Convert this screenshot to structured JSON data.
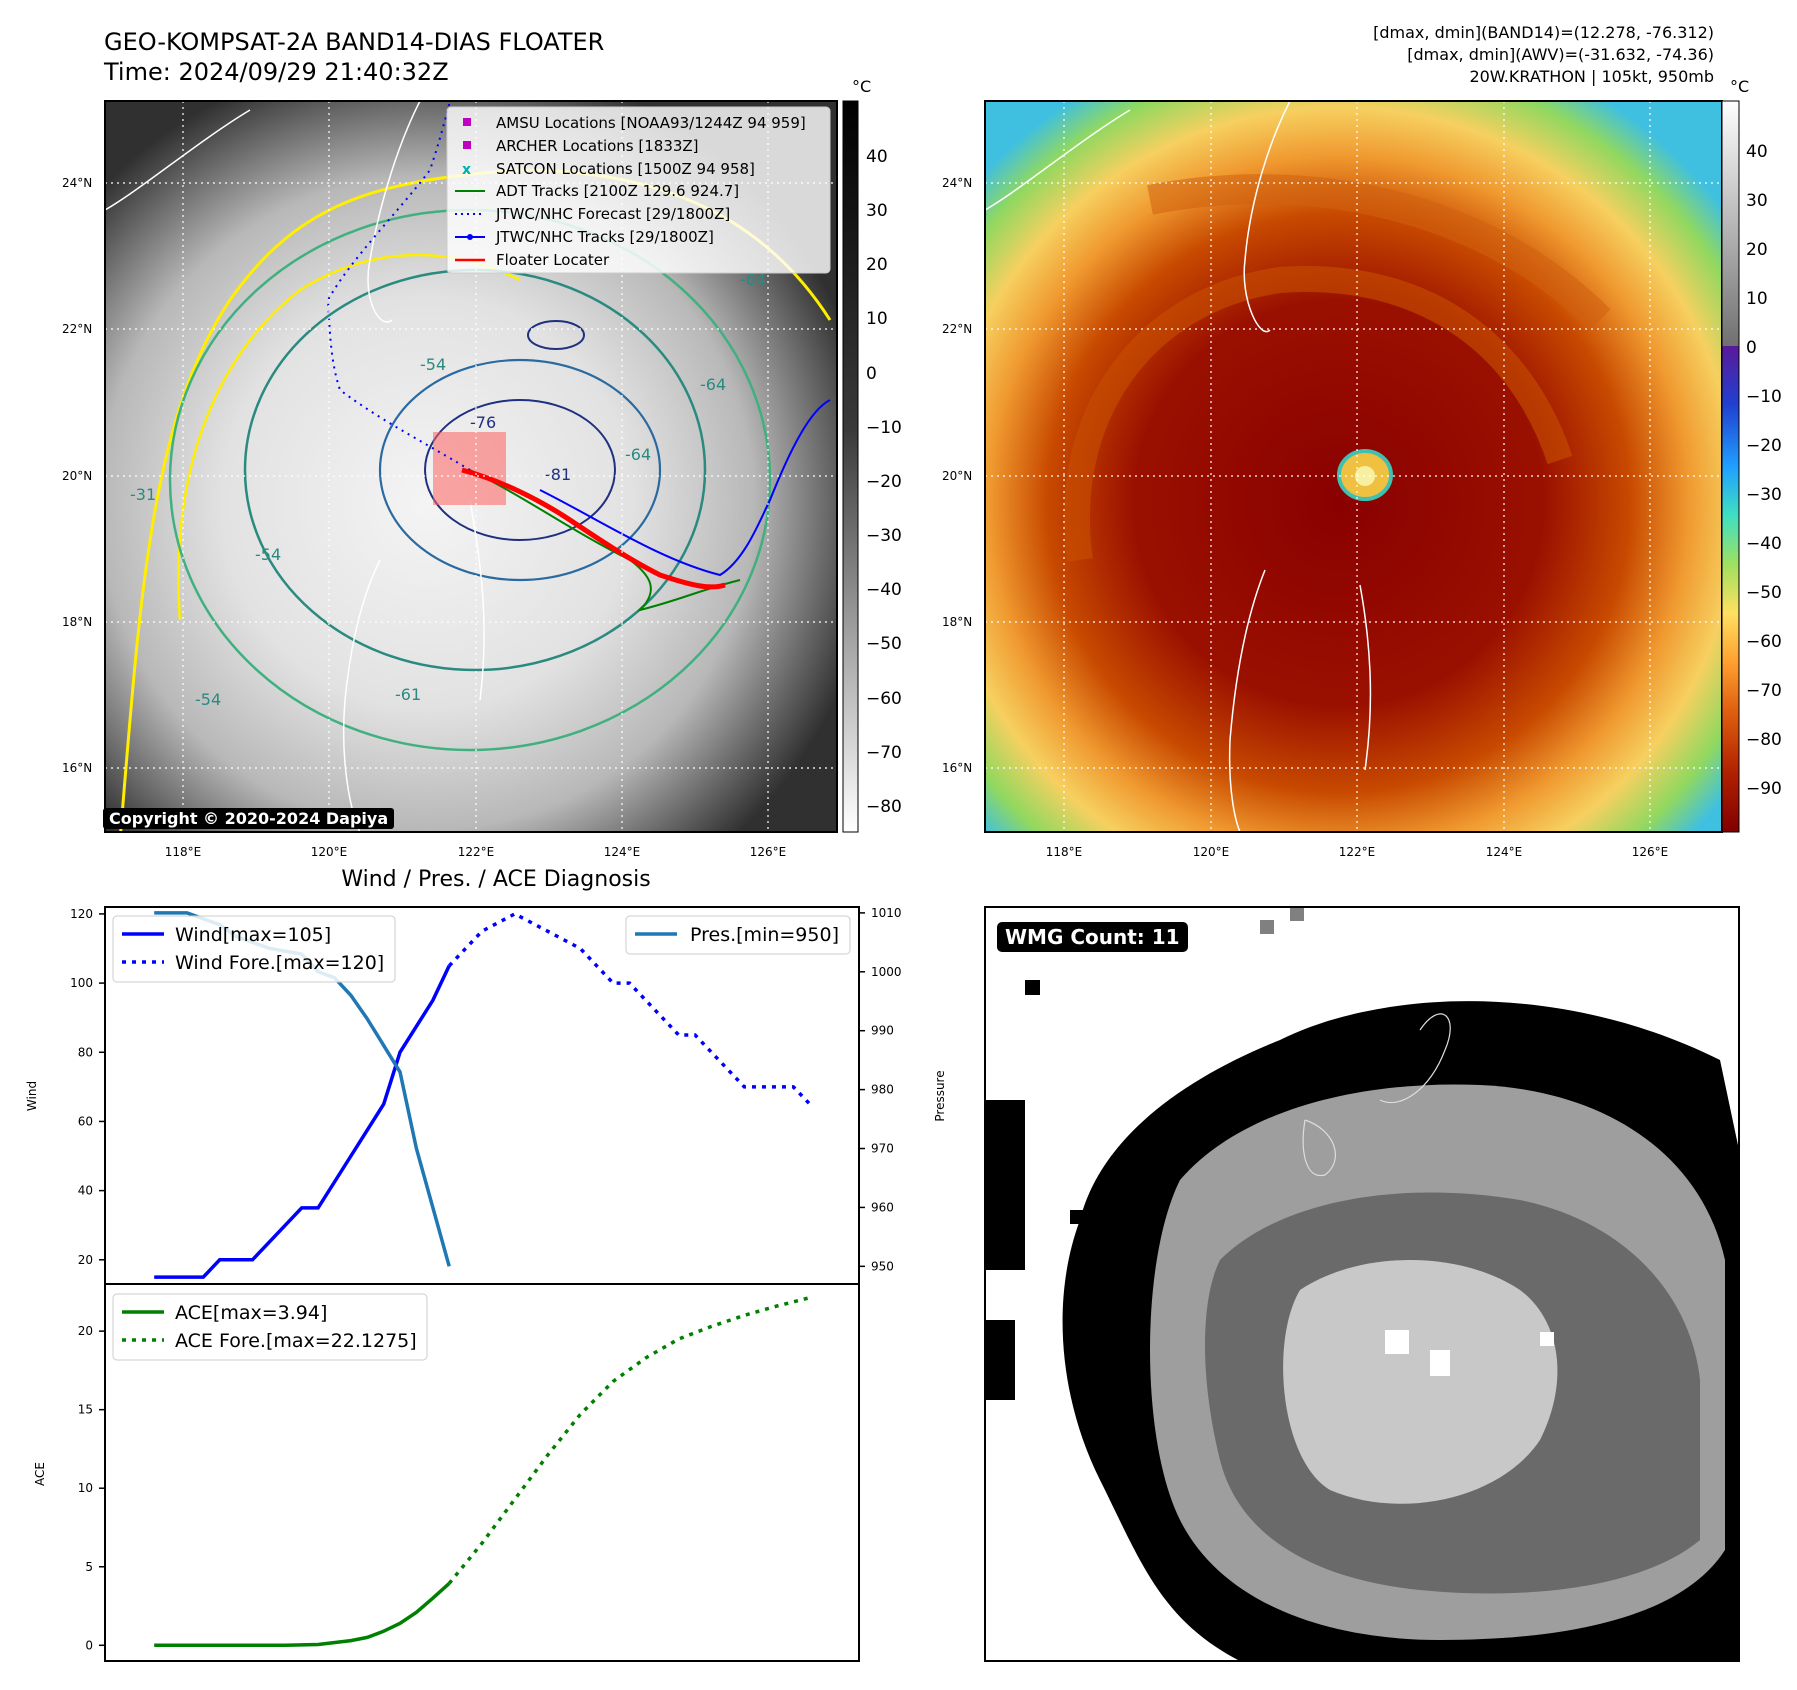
{
  "header": {
    "title_line1": "GEO-KOMPSAT-2A BAND14-DIAS FLOATER",
    "title_line2": "Time: 2024/09/29 21:40:32Z",
    "info_line1": "[dmax, dmin](BAND14)=(12.278, -76.312)",
    "info_line2": "[dmax, dmin](AWV)=(-31.632, -74.36)",
    "info_line3": "20W.KRATHON | 105kt, 950mb"
  },
  "map_axes": {
    "lat_labels": [
      "24°N",
      "22°N",
      "20°N",
      "18°N",
      "16°N"
    ],
    "lon_labels": [
      "118°E",
      "120°E",
      "122°E",
      "124°E",
      "126°E"
    ]
  },
  "ir_panel": {
    "colorbar_unit": "°C",
    "colorbar_ticks": [
      "40",
      "30",
      "20",
      "10",
      "0",
      "−10",
      "−20",
      "−30",
      "−40",
      "−50",
      "−60",
      "−70",
      "−80"
    ],
    "contour_labels": [
      "-31",
      "-54",
      "-54",
      "-64",
      "-64",
      "-64",
      "-76",
      "-81",
      "-54",
      "-61"
    ],
    "copyright": "Copyright © 2020-2024 Dapiya",
    "legend": [
      {
        "label": "AMSU Locations [NOAA93/1244Z 94 959]",
        "marker": "square",
        "color": "#c000c0"
      },
      {
        "label": "ARCHER Locations [1833Z]",
        "marker": "square",
        "color": "#c000c0"
      },
      {
        "label": "SATCON Locations [1500Z 94 958]",
        "marker": "x",
        "color": "#00c0c0"
      },
      {
        "label": "ADT Tracks [2100Z 129.6 924.7]",
        "marker": "line",
        "color": "#008000"
      },
      {
        "label": "JTWC/NHC Forecast [29/1800Z]",
        "marker": "dotted",
        "color": "#0000ff"
      },
      {
        "label": "JTWC/NHC Tracks [29/1800Z]",
        "marker": "line-dot",
        "color": "#0000ff"
      },
      {
        "label": "Floater Locater",
        "marker": "line",
        "color": "#ff0000"
      }
    ]
  },
  "color_panel": {
    "colorbar_unit": "°C",
    "colorbar_ticks": [
      "40",
      "30",
      "20",
      "10",
      "0",
      "−10",
      "−20",
      "−30",
      "−40",
      "−50",
      "−60",
      "−70",
      "−80",
      "−90"
    ]
  },
  "diag_title": "Wind / Pres. / ACE Diagnosis",
  "wmg": {
    "label": "WMG Count: 11"
  },
  "chart_data": [
    {
      "type": "line",
      "title": "Wind / Pres. / ACE Diagnosis",
      "ylabel": "Wind",
      "y2label": "Pressure",
      "ylim": [
        13,
        122
      ],
      "y2lim": [
        947,
        1011
      ],
      "yticks": [
        20,
        40,
        60,
        80,
        100,
        120
      ],
      "y2ticks": [
        950,
        960,
        970,
        980,
        990,
        1000,
        1010
      ],
      "series": [
        {
          "name": "Wind[max=105]",
          "style": "solid",
          "color": "#0000ff",
          "axis": "left",
          "x": [
            0,
            3,
            4,
            6,
            8,
            9,
            10,
            12,
            14,
            15,
            17,
            18
          ],
          "y": [
            15,
            15,
            20,
            20,
            30,
            35,
            35,
            50,
            65,
            80,
            95,
            105
          ]
        },
        {
          "name": "Wind Fore.[max=120]",
          "style": "dotted",
          "color": "#0000ff",
          "axis": "left",
          "x": [
            18,
            20,
            22,
            24,
            26,
            27,
            28,
            29,
            31,
            32,
            33,
            34,
            35,
            36,
            38,
            39,
            40
          ],
          "y": [
            105,
            115,
            120,
            115,
            110,
            105,
            100,
            100,
            90,
            85,
            85,
            80,
            75,
            70,
            70,
            70,
            65
          ]
        },
        {
          "name": "Pres.[min=950]",
          "style": "solid",
          "color": "#1f77b4",
          "axis": "right",
          "x": [
            0,
            2,
            3,
            4,
            5,
            6,
            7,
            9,
            10,
            11,
            12,
            13,
            15,
            16,
            17,
            18
          ],
          "y": [
            1010,
            1010,
            1009,
            1008,
            1006,
            1005,
            1004,
            1003,
            1000,
            999,
            996,
            992,
            983,
            970,
            960,
            950
          ]
        }
      ]
    },
    {
      "type": "line",
      "ylabel": "ACE",
      "ylim": [
        -1,
        23
      ],
      "yticks": [
        0,
        5,
        10,
        15,
        20
      ],
      "series": [
        {
          "name": "ACE[max=3.94]",
          "style": "solid",
          "color": "#008000",
          "x": [
            0,
            2,
            4,
            6,
            8,
            10,
            12,
            13,
            14,
            15,
            16,
            17,
            18
          ],
          "y": [
            0,
            0,
            0,
            0,
            0,
            0.05,
            0.3,
            0.5,
            0.9,
            1.4,
            2.1,
            3.0,
            3.94
          ]
        },
        {
          "name": "ACE Fore.[max=22.1275]",
          "style": "dotted",
          "color": "#008000",
          "x": [
            18,
            20,
            22,
            24,
            26,
            28,
            30,
            32,
            34,
            36,
            38,
            40
          ],
          "y": [
            3.94,
            6.5,
            9.3,
            12.1,
            14.7,
            16.8,
            18.3,
            19.5,
            20.3,
            21.0,
            21.6,
            22.1275
          ]
        }
      ]
    }
  ]
}
